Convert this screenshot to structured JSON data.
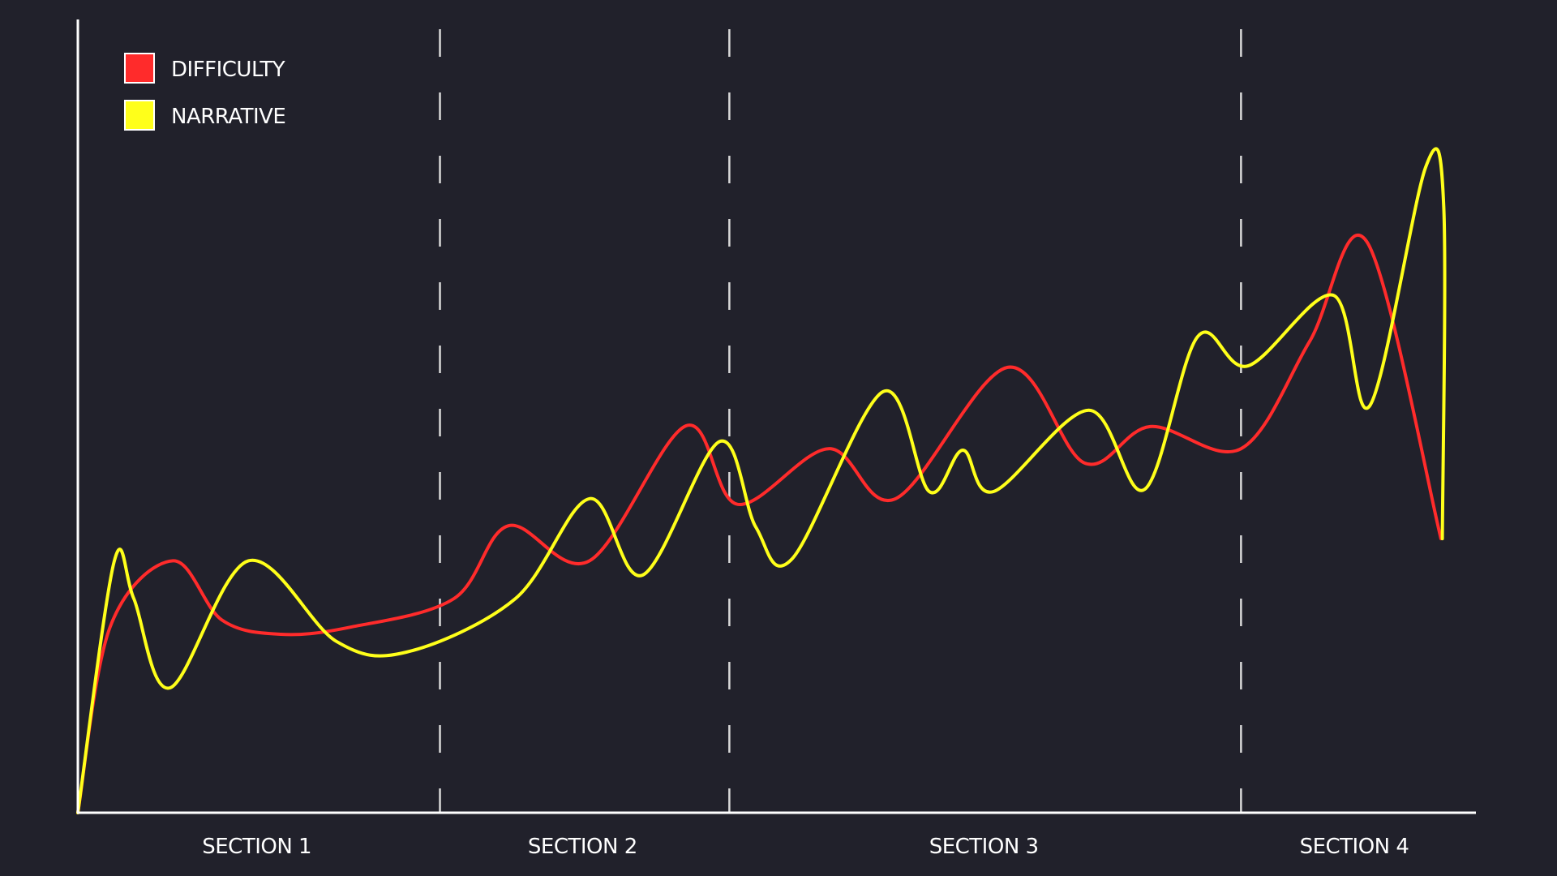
{
  "chart_data": {
    "type": "line",
    "title": "",
    "xlabel": "",
    "ylabel": "",
    "xlim": [
      0,
      100
    ],
    "ylim": [
      0,
      100
    ],
    "grid": false,
    "legend_position": "top-left",
    "section_dividers": [
      25.9,
      46.6,
      83.2
    ],
    "sections": [
      {
        "label": "SECTION 1",
        "center": 12.8
      },
      {
        "label": "SECTION 2",
        "center": 36.1
      },
      {
        "label": "SECTION 3",
        "center": 64.8
      },
      {
        "label": "SECTION 4",
        "center": 91.3
      }
    ],
    "series": [
      {
        "name": "DIFFICULTY",
        "color": "#ff2b2b",
        "points": [
          [
            0,
            0
          ],
          [
            2.3,
            26
          ],
          [
            6.8,
            35.3
          ],
          [
            10.3,
            27
          ],
          [
            14.5,
            25
          ],
          [
            19.5,
            26
          ],
          [
            26.9,
            30
          ],
          [
            30.8,
            40.2
          ],
          [
            36.6,
            35.3
          ],
          [
            43.5,
            54.2
          ],
          [
            47.2,
            43.2
          ],
          [
            53.7,
            51
          ],
          [
            58.5,
            44
          ],
          [
            66.5,
            62.4
          ],
          [
            72,
            49
          ],
          [
            76.7,
            54.1
          ],
          [
            83.2,
            51
          ],
          [
            88.1,
            66
          ],
          [
            92.2,
            80
          ],
          [
            97.5,
            38.4
          ]
        ]
      },
      {
        "name": "NARRATIVE",
        "color": "#ffff1a",
        "points": [
          [
            0,
            0
          ],
          [
            2.6,
            35.2
          ],
          [
            4,
            30
          ],
          [
            6.6,
            17.5
          ],
          [
            12.2,
            35.3
          ],
          [
            18.5,
            24
          ],
          [
            23.5,
            22.5
          ],
          [
            31.3,
            30
          ],
          [
            36.6,
            44
          ],
          [
            40.4,
            33.3
          ],
          [
            45.9,
            52
          ],
          [
            48.5,
            40
          ],
          [
            51.1,
            35.6
          ],
          [
            57.6,
            59
          ],
          [
            60.9,
            45
          ],
          [
            63.3,
            50.8
          ],
          [
            65.5,
            45
          ],
          [
            72.3,
            56.4
          ],
          [
            76.3,
            45.3
          ],
          [
            80.1,
            66.7
          ],
          [
            83.7,
            62.6
          ],
          [
            89.8,
            72.5
          ],
          [
            92.4,
            57
          ],
          [
            96.4,
            90.4
          ],
          [
            97.7,
            85
          ],
          [
            97.6,
            38.4
          ]
        ]
      }
    ]
  }
}
